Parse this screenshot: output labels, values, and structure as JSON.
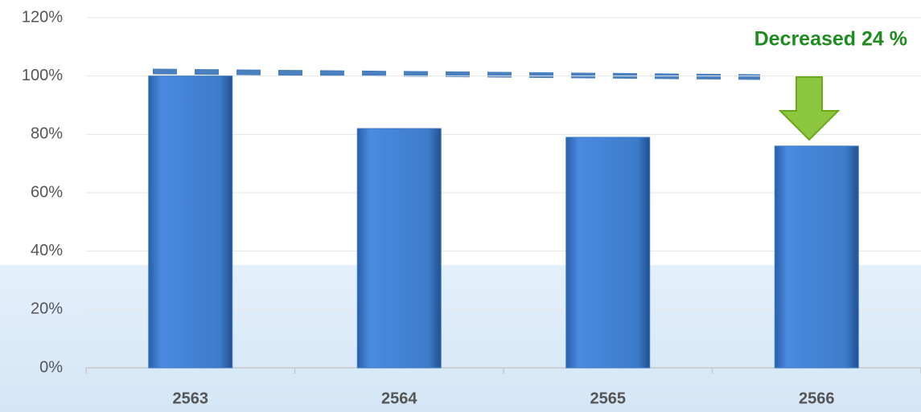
{
  "chart_data": {
    "type": "bar",
    "categories": [
      "2563",
      "2564",
      "2565",
      "2566"
    ],
    "values": [
      100,
      82,
      79,
      76
    ],
    "color": "#3d7cc9",
    "ylim": [
      0,
      120
    ],
    "yticks": [
      {
        "value": 0,
        "label": "0%"
      },
      {
        "value": 20,
        "label": "20%"
      },
      {
        "value": 40,
        "label": "40%"
      },
      {
        "value": 60,
        "label": "60%"
      },
      {
        "value": 80,
        "label": "80%"
      },
      {
        "value": 100,
        "label": "100%"
      },
      {
        "value": 120,
        "label": "120%"
      }
    ],
    "annotation": "Decreased  24 %",
    "annotation_color": "#1e8c1e"
  }
}
